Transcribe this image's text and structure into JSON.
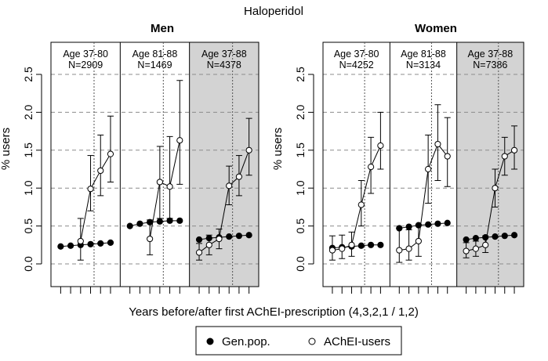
{
  "chart_data": {
    "type": "scatter",
    "title": "Haloperidol",
    "xlabel": "Years before/after first AChEI-prescription (4,3,2,1 / 1,2)",
    "ylabel": "% users",
    "ylim": [
      0,
      2.5
    ],
    "yticks": [
      "0.0",
      "0.5",
      "1.0",
      "1.5",
      "2.0",
      "2.5"
    ],
    "legend": [
      {
        "label": "Gen.pop.",
        "marker": "filled-circle"
      },
      {
        "label": "AChEI-users",
        "marker": "open-circle"
      }
    ],
    "panels": [
      {
        "name": "Men",
        "groups": [
          {
            "age": "Age 37-80",
            "n": "N=2909",
            "shaded": false,
            "genpop": [
              0.23,
              0.24,
              0.25,
              0.26,
              0.27,
              0.28
            ],
            "acheI": [
              null,
              null,
              0.3,
              0.99,
              1.23,
              1.45
            ],
            "acheI_lo": [
              null,
              null,
              0.05,
              0.7,
              0.9,
              1.08
            ],
            "acheI_hi": [
              null,
              null,
              0.6,
              1.43,
              1.7,
              1.95
            ]
          },
          {
            "age": "Age 81-88",
            "n": "N=1469",
            "shaded": false,
            "genpop": [
              0.5,
              0.53,
              0.55,
              0.56,
              0.57,
              0.57
            ],
            "acheI": [
              null,
              null,
              0.33,
              1.08,
              1.02,
              1.63
            ],
            "acheI_lo": [
              null,
              null,
              0.12,
              0.6,
              0.6,
              1.05
            ],
            "acheI_hi": [
              null,
              null,
              0.58,
              1.55,
              1.68,
              2.42
            ]
          },
          {
            "age": "Age 37-88",
            "n": "N=4378",
            "shaded": true,
            "genpop": [
              0.32,
              0.34,
              0.35,
              0.36,
              0.37,
              0.38
            ],
            "acheI": [
              0.15,
              0.25,
              0.33,
              1.03,
              1.15,
              1.5
            ],
            "acheI_lo": [
              0.05,
              0.12,
              0.2,
              0.78,
              0.9,
              1.17
            ],
            "acheI_hi": [
              0.27,
              0.38,
              0.46,
              1.29,
              1.43,
              1.92
            ]
          }
        ]
      },
      {
        "name": "Women",
        "groups": [
          {
            "age": "Age 37-80",
            "n": "N=4252",
            "shaded": false,
            "genpop": [
              0.21,
              0.22,
              0.23,
              0.24,
              0.25,
              0.25
            ],
            "acheI": [
              0.18,
              0.2,
              0.25,
              0.78,
              1.28,
              1.56
            ],
            "acheI_lo": [
              0.05,
              0.07,
              0.1,
              0.5,
              0.93,
              1.25
            ],
            "acheI_hi": [
              0.37,
              0.38,
              0.42,
              1.1,
              1.67,
              2.0
            ]
          },
          {
            "age": "Age 81-88",
            "n": "N=3134",
            "shaded": false,
            "genpop": [
              0.47,
              0.49,
              0.51,
              0.52,
              0.53,
              0.54
            ],
            "acheI": [
              0.18,
              0.2,
              0.3,
              1.25,
              1.58,
              1.42
            ],
            "acheI_lo": [
              0.02,
              0.05,
              0.1,
              0.8,
              1.1,
              1.02
            ],
            "acheI_hi": [
              0.47,
              0.45,
              0.52,
              1.7,
              2.1,
              1.93
            ]
          },
          {
            "age": "Age 37-88",
            "n": "N=7386",
            "shaded": true,
            "genpop": [
              0.32,
              0.34,
              0.35,
              0.36,
              0.37,
              0.38
            ],
            "acheI": [
              0.17,
              0.2,
              0.25,
              1.0,
              1.42,
              1.5
            ],
            "acheI_lo": [
              0.08,
              0.1,
              0.15,
              0.75,
              1.17,
              1.25
            ],
            "acheI_hi": [
              0.28,
              0.3,
              0.37,
              1.25,
              1.67,
              1.82
            ]
          }
        ]
      }
    ]
  }
}
